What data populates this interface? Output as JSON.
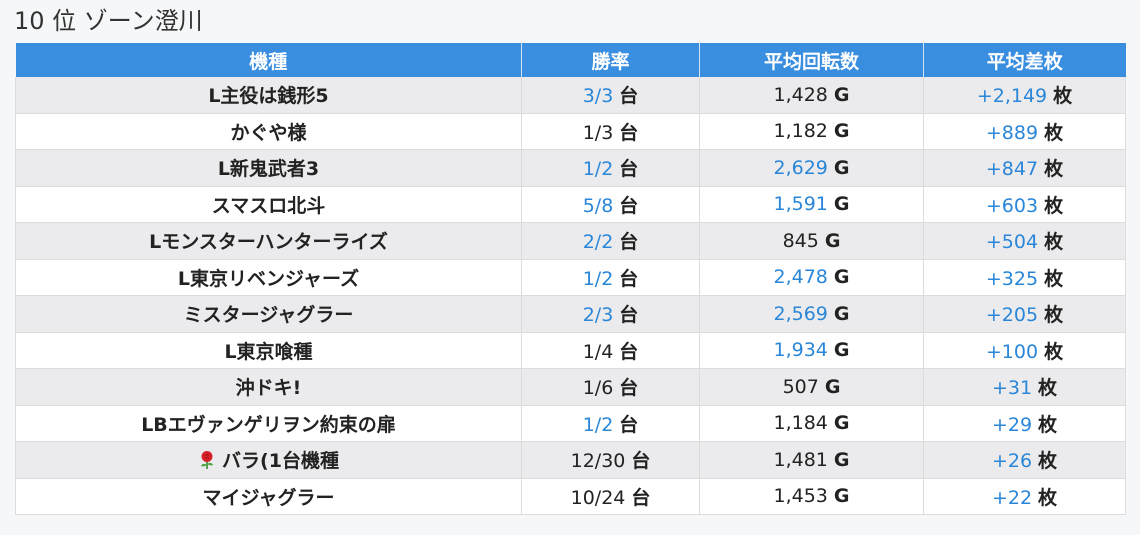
{
  "page": {
    "title": "10 位 ゾーン澄川"
  },
  "table": {
    "headers": [
      "機種",
      "勝率",
      "平均回転数",
      "平均差枚"
    ],
    "rows": [
      {
        "machine": "L主役は銭形5",
        "icon": "",
        "win": "3/3",
        "win_unit": "台",
        "win_hl": true,
        "spins": "1,428",
        "spins_unit": "G",
        "spins_hl": false,
        "diff": "+2,149",
        "diff_unit": "枚",
        "diff_hl": true
      },
      {
        "machine": "かぐや様",
        "icon": "",
        "win": "1/3",
        "win_unit": "台",
        "win_hl": false,
        "spins": "1,182",
        "spins_unit": "G",
        "spins_hl": false,
        "diff": "+889",
        "diff_unit": "枚",
        "diff_hl": true
      },
      {
        "machine": "L新鬼武者3",
        "icon": "",
        "win": "1/2",
        "win_unit": "台",
        "win_hl": true,
        "spins": "2,629",
        "spins_unit": "G",
        "spins_hl": true,
        "diff": "+847",
        "diff_unit": "枚",
        "diff_hl": true
      },
      {
        "machine": "スマスロ北斗",
        "icon": "",
        "win": "5/8",
        "win_unit": "台",
        "win_hl": true,
        "spins": "1,591",
        "spins_unit": "G",
        "spins_hl": true,
        "diff": "+603",
        "diff_unit": "枚",
        "diff_hl": true
      },
      {
        "machine": "Lモンスターハンターライズ",
        "icon": "",
        "win": "2/2",
        "win_unit": "台",
        "win_hl": true,
        "spins": "845",
        "spins_unit": "G",
        "spins_hl": false,
        "diff": "+504",
        "diff_unit": "枚",
        "diff_hl": true
      },
      {
        "machine": "L東京リベンジャーズ",
        "icon": "",
        "win": "1/2",
        "win_unit": "台",
        "win_hl": true,
        "spins": "2,478",
        "spins_unit": "G",
        "spins_hl": true,
        "diff": "+325",
        "diff_unit": "枚",
        "diff_hl": true
      },
      {
        "machine": "ミスタージャグラー",
        "icon": "",
        "win": "2/3",
        "win_unit": "台",
        "win_hl": true,
        "spins": "2,569",
        "spins_unit": "G",
        "spins_hl": true,
        "diff": "+205",
        "diff_unit": "枚",
        "diff_hl": true
      },
      {
        "machine": "L東京喰種",
        "icon": "",
        "win": "1/4",
        "win_unit": "台",
        "win_hl": false,
        "spins": "1,934",
        "spins_unit": "G",
        "spins_hl": true,
        "diff": "+100",
        "diff_unit": "枚",
        "diff_hl": true
      },
      {
        "machine": "沖ドキ!",
        "icon": "",
        "win": "1/6",
        "win_unit": "台",
        "win_hl": false,
        "spins": "507",
        "spins_unit": "G",
        "spins_hl": false,
        "diff": "+31",
        "diff_unit": "枚",
        "diff_hl": true
      },
      {
        "machine": "LBエヴァンゲリヲン約束の扉",
        "icon": "",
        "win": "1/2",
        "win_unit": "台",
        "win_hl": true,
        "spins": "1,184",
        "spins_unit": "G",
        "spins_hl": false,
        "diff": "+29",
        "diff_unit": "枚",
        "diff_hl": true
      },
      {
        "machine": "バラ(1台機種",
        "icon": "rose-icon",
        "win": "12/30",
        "win_unit": "台",
        "win_hl": false,
        "spins": "1,481",
        "spins_unit": "G",
        "spins_hl": false,
        "diff": "+26",
        "diff_unit": "枚",
        "diff_hl": true
      },
      {
        "machine": "マイジャグラー",
        "icon": "",
        "win": "10/24",
        "win_unit": "台",
        "win_hl": false,
        "spins": "1,453",
        "spins_unit": "G",
        "spins_hl": false,
        "diff": "+22",
        "diff_unit": "枚",
        "diff_hl": true
      }
    ]
  },
  "colors": {
    "header_bg": "#3a8ee0",
    "highlight": "#2a86d8",
    "row_odd": "#ebebed",
    "row_even": "#ffffff"
  }
}
